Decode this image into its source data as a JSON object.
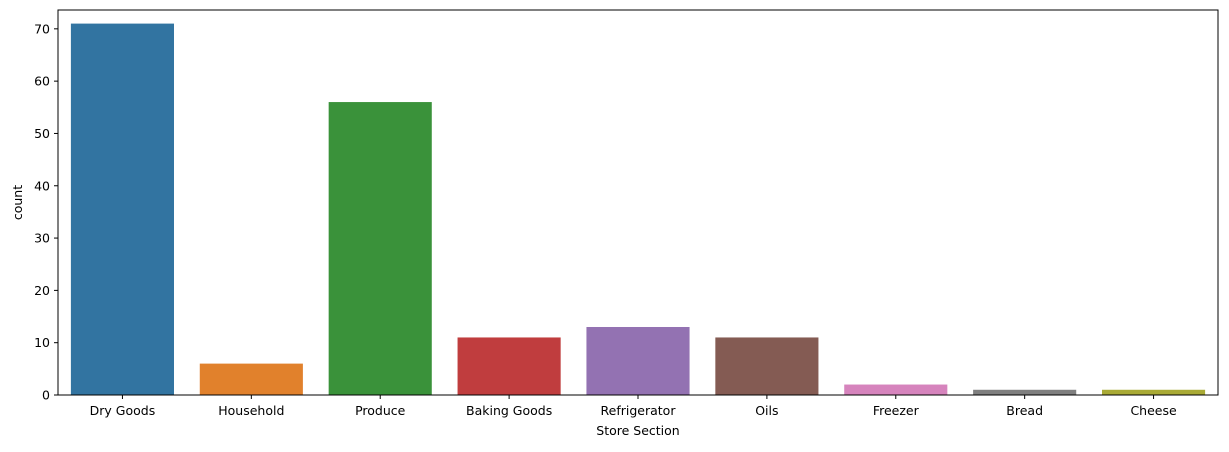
{
  "chart_data": {
    "type": "bar",
    "title": "",
    "xlabel": "Store Section",
    "ylabel": "count",
    "categories": [
      "Dry Goods",
      "Household",
      "Produce",
      "Baking Goods",
      "Refrigerator",
      "Oils",
      "Freezer",
      "Bread",
      "Cheese"
    ],
    "values": [
      71,
      6,
      56,
      11,
      13,
      11,
      2,
      1,
      1
    ],
    "colors": [
      "#3274a1",
      "#e1812c",
      "#3a923a",
      "#c03d3e",
      "#9372b2",
      "#845b53",
      "#d684bd",
      "#7f7f7f",
      "#a9aa35"
    ],
    "ylim": [
      0,
      73.6
    ],
    "yticks": [
      0,
      10,
      20,
      30,
      40,
      50,
      60,
      70
    ],
    "grid": false,
    "legend": "none"
  }
}
